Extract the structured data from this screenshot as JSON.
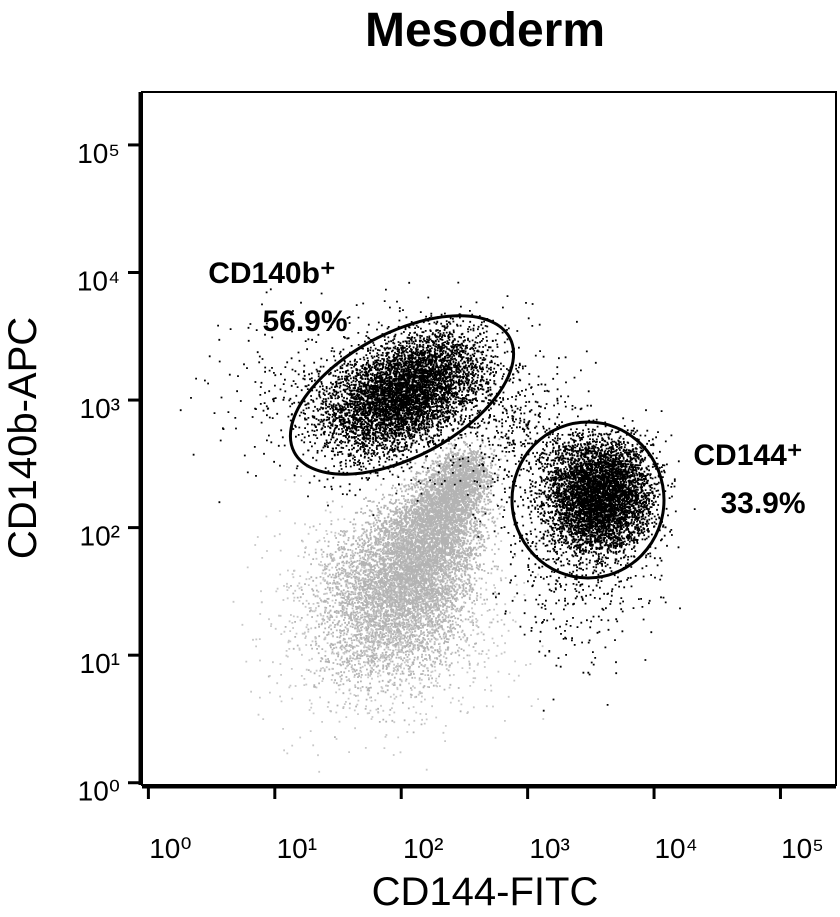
{
  "chart_data": {
    "type": "scatter",
    "title": "Mesoderm",
    "x_label": "CD144-FITC",
    "y_label": "CD140b-APC",
    "log_x": true,
    "log_y": true,
    "xlim": [
      0.89,
      275000
    ],
    "ylim": [
      0.96,
      260000
    ],
    "xticks": [
      {
        "value": 1,
        "label": "10⁰"
      },
      {
        "value": 10,
        "label": "10¹"
      },
      {
        "value": 100,
        "label": "10²"
      },
      {
        "value": 1000,
        "label": "10³"
      },
      {
        "value": 10000,
        "label": "10⁴"
      },
      {
        "value": 100000,
        "label": "10⁵"
      }
    ],
    "yticks": [
      {
        "value": 1,
        "label": "10⁰"
      },
      {
        "value": 10,
        "label": "10¹"
      },
      {
        "value": 100,
        "label": "10²"
      },
      {
        "value": 1000,
        "label": "10³"
      },
      {
        "value": 10000,
        "label": "10⁴"
      },
      {
        "value": 100000,
        "label": "10⁵"
      }
    ],
    "gates": [
      {
        "name": "CD140b⁺",
        "value": 56.9,
        "value_label": "56.9%"
      },
      {
        "name": "CD144⁺",
        "value": 33.9,
        "value_label": "33.9%"
      }
    ]
  }
}
